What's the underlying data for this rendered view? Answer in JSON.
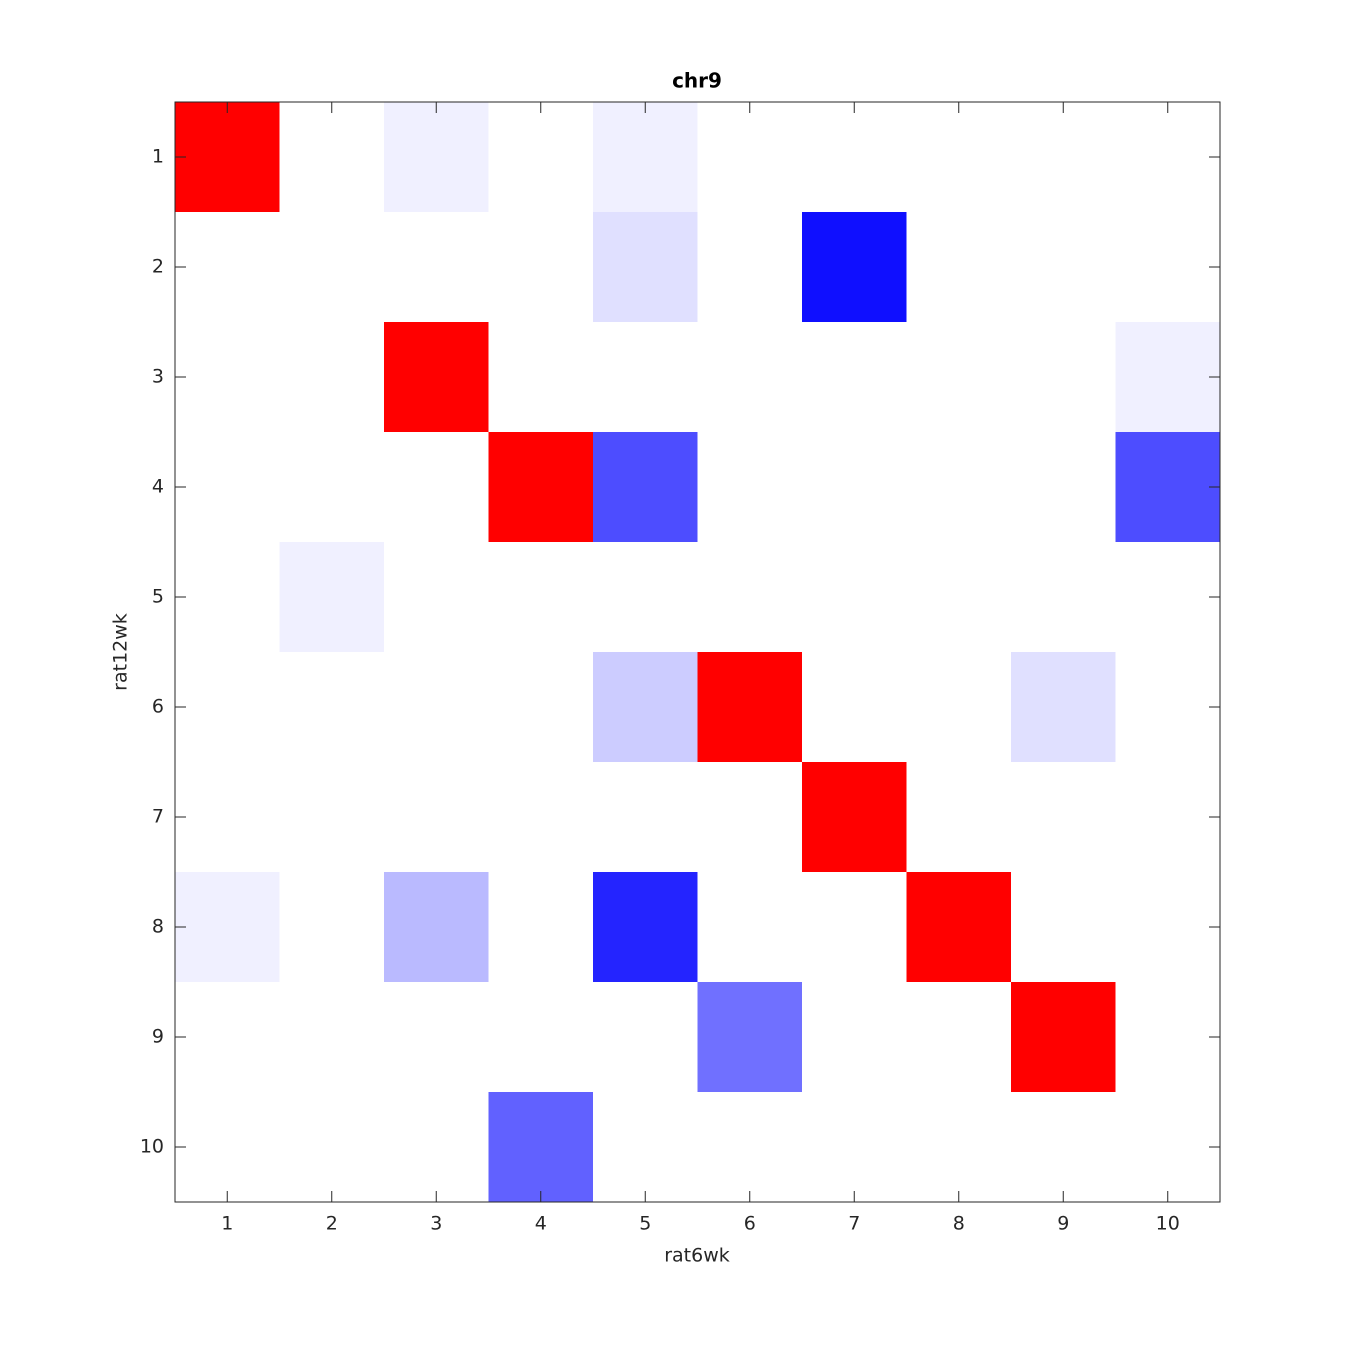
{
  "chart_data": {
    "type": "heatmap",
    "title": "chr9",
    "x_label": "rat6wk",
    "y_label": "rat12wk",
    "x": [
      1,
      2,
      3,
      4,
      5,
      6,
      7,
      8,
      9,
      10
    ],
    "y": [
      1,
      2,
      3,
      4,
      5,
      6,
      7,
      8,
      9,
      10
    ],
    "xlim": [
      0.5,
      10.5
    ],
    "ylim": [
      0.5,
      10.5
    ],
    "y_reversed": true,
    "xticks": [
      1,
      2,
      3,
      4,
      5,
      6,
      7,
      8,
      9,
      10
    ],
    "yticks": [
      1,
      2,
      3,
      4,
      5,
      6,
      7,
      8,
      9,
      10
    ],
    "clim": [
      -1,
      1
    ],
    "colormap": [
      "#0000ff",
      "#ffffff",
      "#ff0000"
    ],
    "values": [
      [
        1,
        0,
        -0.06,
        0,
        -0.06,
        0,
        0,
        0,
        0,
        0
      ],
      [
        0,
        0,
        0,
        0,
        -0.12,
        0,
        -0.94,
        0,
        0,
        0
      ],
      [
        0,
        0,
        1,
        0,
        0,
        0,
        0,
        0,
        0,
        -0.06
      ],
      [
        0,
        0,
        0,
        1,
        -0.7,
        0,
        0,
        0,
        0,
        -0.7
      ],
      [
        0,
        -0.06,
        0,
        0,
        0,
        0,
        0,
        0,
        0,
        0
      ],
      [
        0,
        0,
        0,
        0,
        -0.2,
        1,
        0,
        0,
        -0.12,
        0
      ],
      [
        0,
        0,
        0,
        0,
        0,
        0,
        1,
        0,
        0,
        0
      ],
      [
        -0.06,
        0,
        -0.27,
        0,
        -0.86,
        0,
        0,
        1,
        0,
        0
      ],
      [
        0,
        0,
        0,
        0,
        0,
        -0.56,
        0,
        0,
        1,
        0
      ],
      [
        0,
        0,
        0,
        -0.62,
        0,
        0,
        0,
        0,
        0,
        0
      ]
    ]
  }
}
